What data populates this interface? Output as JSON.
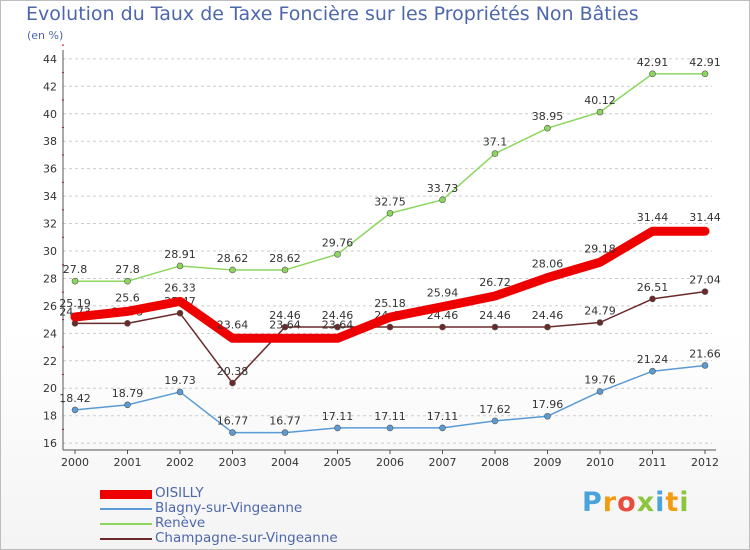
{
  "header": {
    "title": "Evolution du Taux de Taxe Foncière sur les Propriétés Non Bâties",
    "unit": "(en %)"
  },
  "logo": {
    "text": "Proxiti",
    "colors": [
      "#4aa3df",
      "#f39c12",
      "#e74c3c",
      "#8cc63f",
      "#4aa3df",
      "#f39c12",
      "#8cc63f"
    ]
  },
  "colors": {
    "title": "#4d67ad",
    "grid": "#cccccc",
    "axis_ticks_red": "#cc0000"
  },
  "chart_data": {
    "type": "line",
    "title": "Evolution du Taux de Taxe Foncière sur les Propriétés Non Bâties",
    "ylabel": "(en %)",
    "xlabel": "",
    "x": [
      "2000",
      "2001",
      "2002",
      "2003",
      "2004",
      "2005",
      "2006",
      "2007",
      "2008",
      "2009",
      "2010",
      "2011",
      "2012"
    ],
    "ylim": [
      15.5,
      44.5
    ],
    "yticks": [
      16,
      18,
      20,
      22,
      24,
      26,
      28,
      30,
      32,
      34,
      36,
      38,
      40,
      42,
      44
    ],
    "grid": "horizontal",
    "legend_position": "bottom-left",
    "series": [
      {
        "name": "Renève",
        "color": "#8cd660",
        "values": [
          27.8,
          27.8,
          28.91,
          28.62,
          28.62,
          29.76,
          32.75,
          33.73,
          37.1,
          38.95,
          40.12,
          42.91,
          42.91
        ],
        "labels": [
          "27.8",
          "27.8",
          "28.91",
          "28.62",
          "28.62",
          "29.76",
          "32.75",
          "33.73",
          "37.1",
          "38.95",
          "40.12",
          "42.91",
          "42.91"
        ]
      },
      {
        "name": "Blagny-sur-Vingeanne",
        "color": "#5b9bd5",
        "values": [
          18.42,
          18.79,
          19.73,
          16.77,
          16.77,
          17.11,
          17.11,
          17.11,
          17.62,
          17.96,
          19.76,
          21.24,
          21.66
        ],
        "labels": [
          "18.42",
          "18.79",
          "19.73",
          "16.77",
          "16.77",
          "17.11",
          "17.11",
          "17.11",
          "17.62",
          "17.96",
          "19.76",
          "21.24",
          "21.66"
        ]
      },
      {
        "name": "Champagne-sur-Vingeanne",
        "color": "#6b2a2a",
        "values": [
          24.73,
          24.73,
          25.47,
          20.38,
          24.46,
          24.46,
          24.46,
          24.46,
          24.46,
          24.46,
          24.79,
          26.51,
          27.04
        ],
        "labels": [
          "24.73",
          "24.73",
          "25.47",
          "20.38",
          "24.46",
          "24.46",
          "24.46",
          "24.46",
          "24.46",
          "24.46",
          "24.79",
          "26.51",
          "27.04"
        ]
      },
      {
        "name": "OISILLY",
        "color": "#ee0000",
        "values": [
          25.19,
          25.6,
          26.33,
          23.64,
          23.64,
          23.64,
          25.18,
          25.94,
          26.72,
          28.06,
          29.18,
          31.44,
          31.44
        ],
        "labels": [
          "25.19",
          "25.6",
          "26.33",
          "23.64",
          "23.64",
          "23.64",
          "25.18",
          "25.94",
          "26.72",
          "28.06",
          "29.18",
          "31.44",
          "31.44"
        ]
      }
    ],
    "legend": [
      {
        "name": "OISILLY",
        "color": "#ee0000",
        "width": 9
      },
      {
        "name": "Blagny-sur-Vingeanne",
        "color": "#5b9bd5",
        "width": 2
      },
      {
        "name": "Renève",
        "color": "#8cd660",
        "width": 2
      },
      {
        "name": "Champagne-sur-Vingeanne",
        "color": "#6b2a2a",
        "width": 2
      }
    ]
  }
}
